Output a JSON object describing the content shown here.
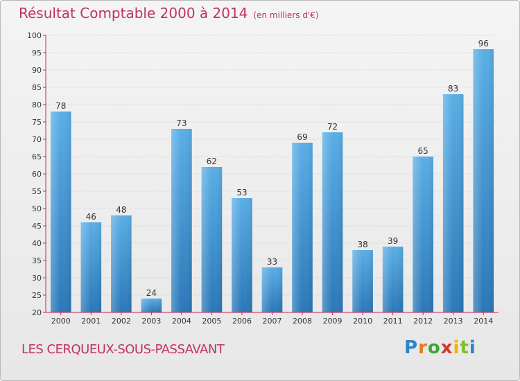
{
  "title": "Résultat Comptable 2000 à 2014",
  "unit": "(en milliers d'€)",
  "commune": "LES CERQUEUX-SOUS-PASSAVANT",
  "logo": "Proxiti",
  "colors": {
    "title": "#c0325f",
    "bar_top": "#5aaee6",
    "bar_bottom": "#2a78b8",
    "axis": "#c8245a"
  },
  "chart_data": {
    "type": "bar",
    "title": "Résultat Comptable 2000 à 2014",
    "ylabel": "(en milliers d'€)",
    "xlabel": "",
    "categories": [
      "2000",
      "2001",
      "2002",
      "2003",
      "2004",
      "2005",
      "2006",
      "2007",
      "2008",
      "2009",
      "2010",
      "2011",
      "2012",
      "2013",
      "2014"
    ],
    "values": [
      78,
      46,
      48,
      24,
      73,
      62,
      53,
      33,
      69,
      72,
      38,
      39,
      65,
      83,
      96
    ],
    "ylim": [
      20,
      100
    ],
    "yticks": [
      20,
      25,
      30,
      35,
      40,
      45,
      50,
      55,
      60,
      65,
      70,
      75,
      80,
      85,
      90,
      95,
      100
    ],
    "grid": true
  }
}
